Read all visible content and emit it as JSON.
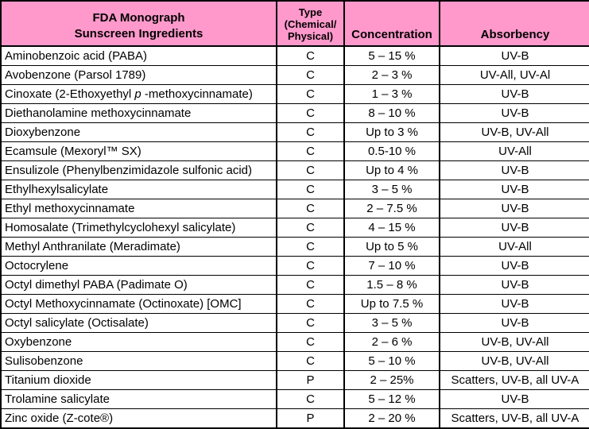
{
  "header": {
    "ingredients_line1": "FDA Monograph",
    "ingredients_line2": "Sunscreen Ingredients",
    "type_line1": "Type",
    "type_line2": "(Chemical/",
    "type_line3": "Physical)",
    "concentration": "Concentration",
    "absorbency": "Absorbency"
  },
  "colors": {
    "header_bg": "#FF99CC",
    "grid": "#000000",
    "body_bg": "#FFFFFF",
    "text": "#000000"
  },
  "chart_data": {
    "type": "table",
    "title": "FDA Monograph Sunscreen Ingredients",
    "columns": [
      "FDA Monograph Sunscreen Ingredients",
      "Type (Chemical/Physical)",
      "Concentration",
      "Absorbency"
    ],
    "rows": [
      [
        "Aminobenzoic acid (PABA)",
        "C",
        "5 – 15 %",
        "UV-B"
      ],
      [
        "Avobenzone (Parsol 1789)",
        "C",
        "2 – 3 %",
        "UV-All, UV-Al"
      ],
      [
        "Cinoxate (2-Ethoxyethyl *p* -methoxycinnamate)",
        "C",
        "1 – 3 %",
        "UV-B"
      ],
      [
        "Diethanolamine methoxycinnamate",
        "C",
        "8 – 10 %",
        "UV-B"
      ],
      [
        "Dioxybenzone",
        "C",
        "Up to 3 %",
        "UV-B, UV-All"
      ],
      [
        "Ecamsule (Mexoryl™ SX)",
        "C",
        "0.5-10 %",
        "UV-All"
      ],
      [
        "Ensulizole (Phenylbenzimidazole sulfonic acid)",
        "C",
        "Up to 4 %",
        "UV-B"
      ],
      [
        "Ethylhexylsalicylate",
        "C",
        "3 – 5 %",
        "UV-B"
      ],
      [
        "Ethyl methoxycinnamate",
        "C",
        "2 – 7.5 %",
        "UV-B"
      ],
      [
        "Homosalate (Trimethylcyclohexyl salicylate)",
        "C",
        "4 – 15 %",
        "UV-B"
      ],
      [
        "Methyl Anthranilate (Meradimate)",
        "C",
        "Up to 5 %",
        "UV-All"
      ],
      [
        "Octocrylene",
        "C",
        "7 – 10 %",
        "UV-B"
      ],
      [
        "Octyl dimethyl PABA (Padimate O)",
        "C",
        "1.5 – 8 %",
        "UV-B"
      ],
      [
        "Octyl Methoxycinnamate (Octinoxate) [OMC]",
        "C",
        "Up to 7.5 %",
        "UV-B"
      ],
      [
        "Octyl salicylate (Octisalate)",
        "C",
        "3 – 5 %",
        "UV-B"
      ],
      [
        "Oxybenzone",
        "C",
        "2 – 6 %",
        "UV-B, UV-All"
      ],
      [
        "Sulisobenzone",
        "C",
        "5 – 10 %",
        "UV-B, UV-All"
      ],
      [
        "Titanium dioxide",
        "P",
        "2 – 25%",
        "Scatters, UV-B, all UV-A"
      ],
      [
        "Trolamine salicylate",
        "C",
        "5 – 12 %",
        "UV-B"
      ],
      [
        "Zinc oxide (Z-cote®)",
        "P",
        "2 – 20 %",
        "Scatters, UV-B, all UV-A"
      ]
    ]
  }
}
